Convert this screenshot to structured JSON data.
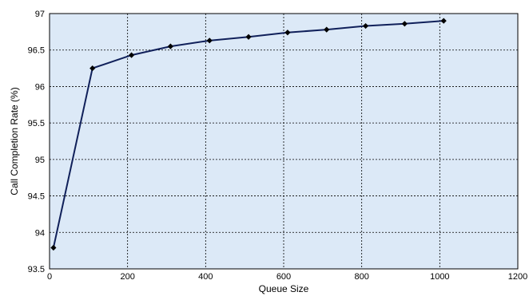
{
  "chart_data": {
    "type": "line",
    "title": "",
    "xlabel": "Queue Size",
    "ylabel": "Call Completion Rate (%)",
    "xlim": [
      0,
      1200
    ],
    "ylim": [
      93.5,
      97
    ],
    "xticks": [
      "0",
      "200",
      "400",
      "600",
      "800",
      "1000",
      "1200"
    ],
    "yticks": [
      "93.5",
      "94",
      "94.5",
      "95",
      "95.5",
      "96",
      "96.5",
      "97"
    ],
    "grid": true,
    "legend": "none",
    "series": [
      {
        "x": [
          10,
          110,
          210,
          310,
          410,
          510,
          610,
          710,
          810,
          910,
          1010
        ],
        "y": [
          93.79,
          96.25,
          96.43,
          96.55,
          96.63,
          96.68,
          96.74,
          96.78,
          96.83,
          96.86,
          96.9
        ],
        "color": "#10205a",
        "marker": "diamond"
      }
    ],
    "colors": {
      "plot_background": "#dce9f7",
      "grid": "#000000",
      "line": "#10205a"
    }
  }
}
